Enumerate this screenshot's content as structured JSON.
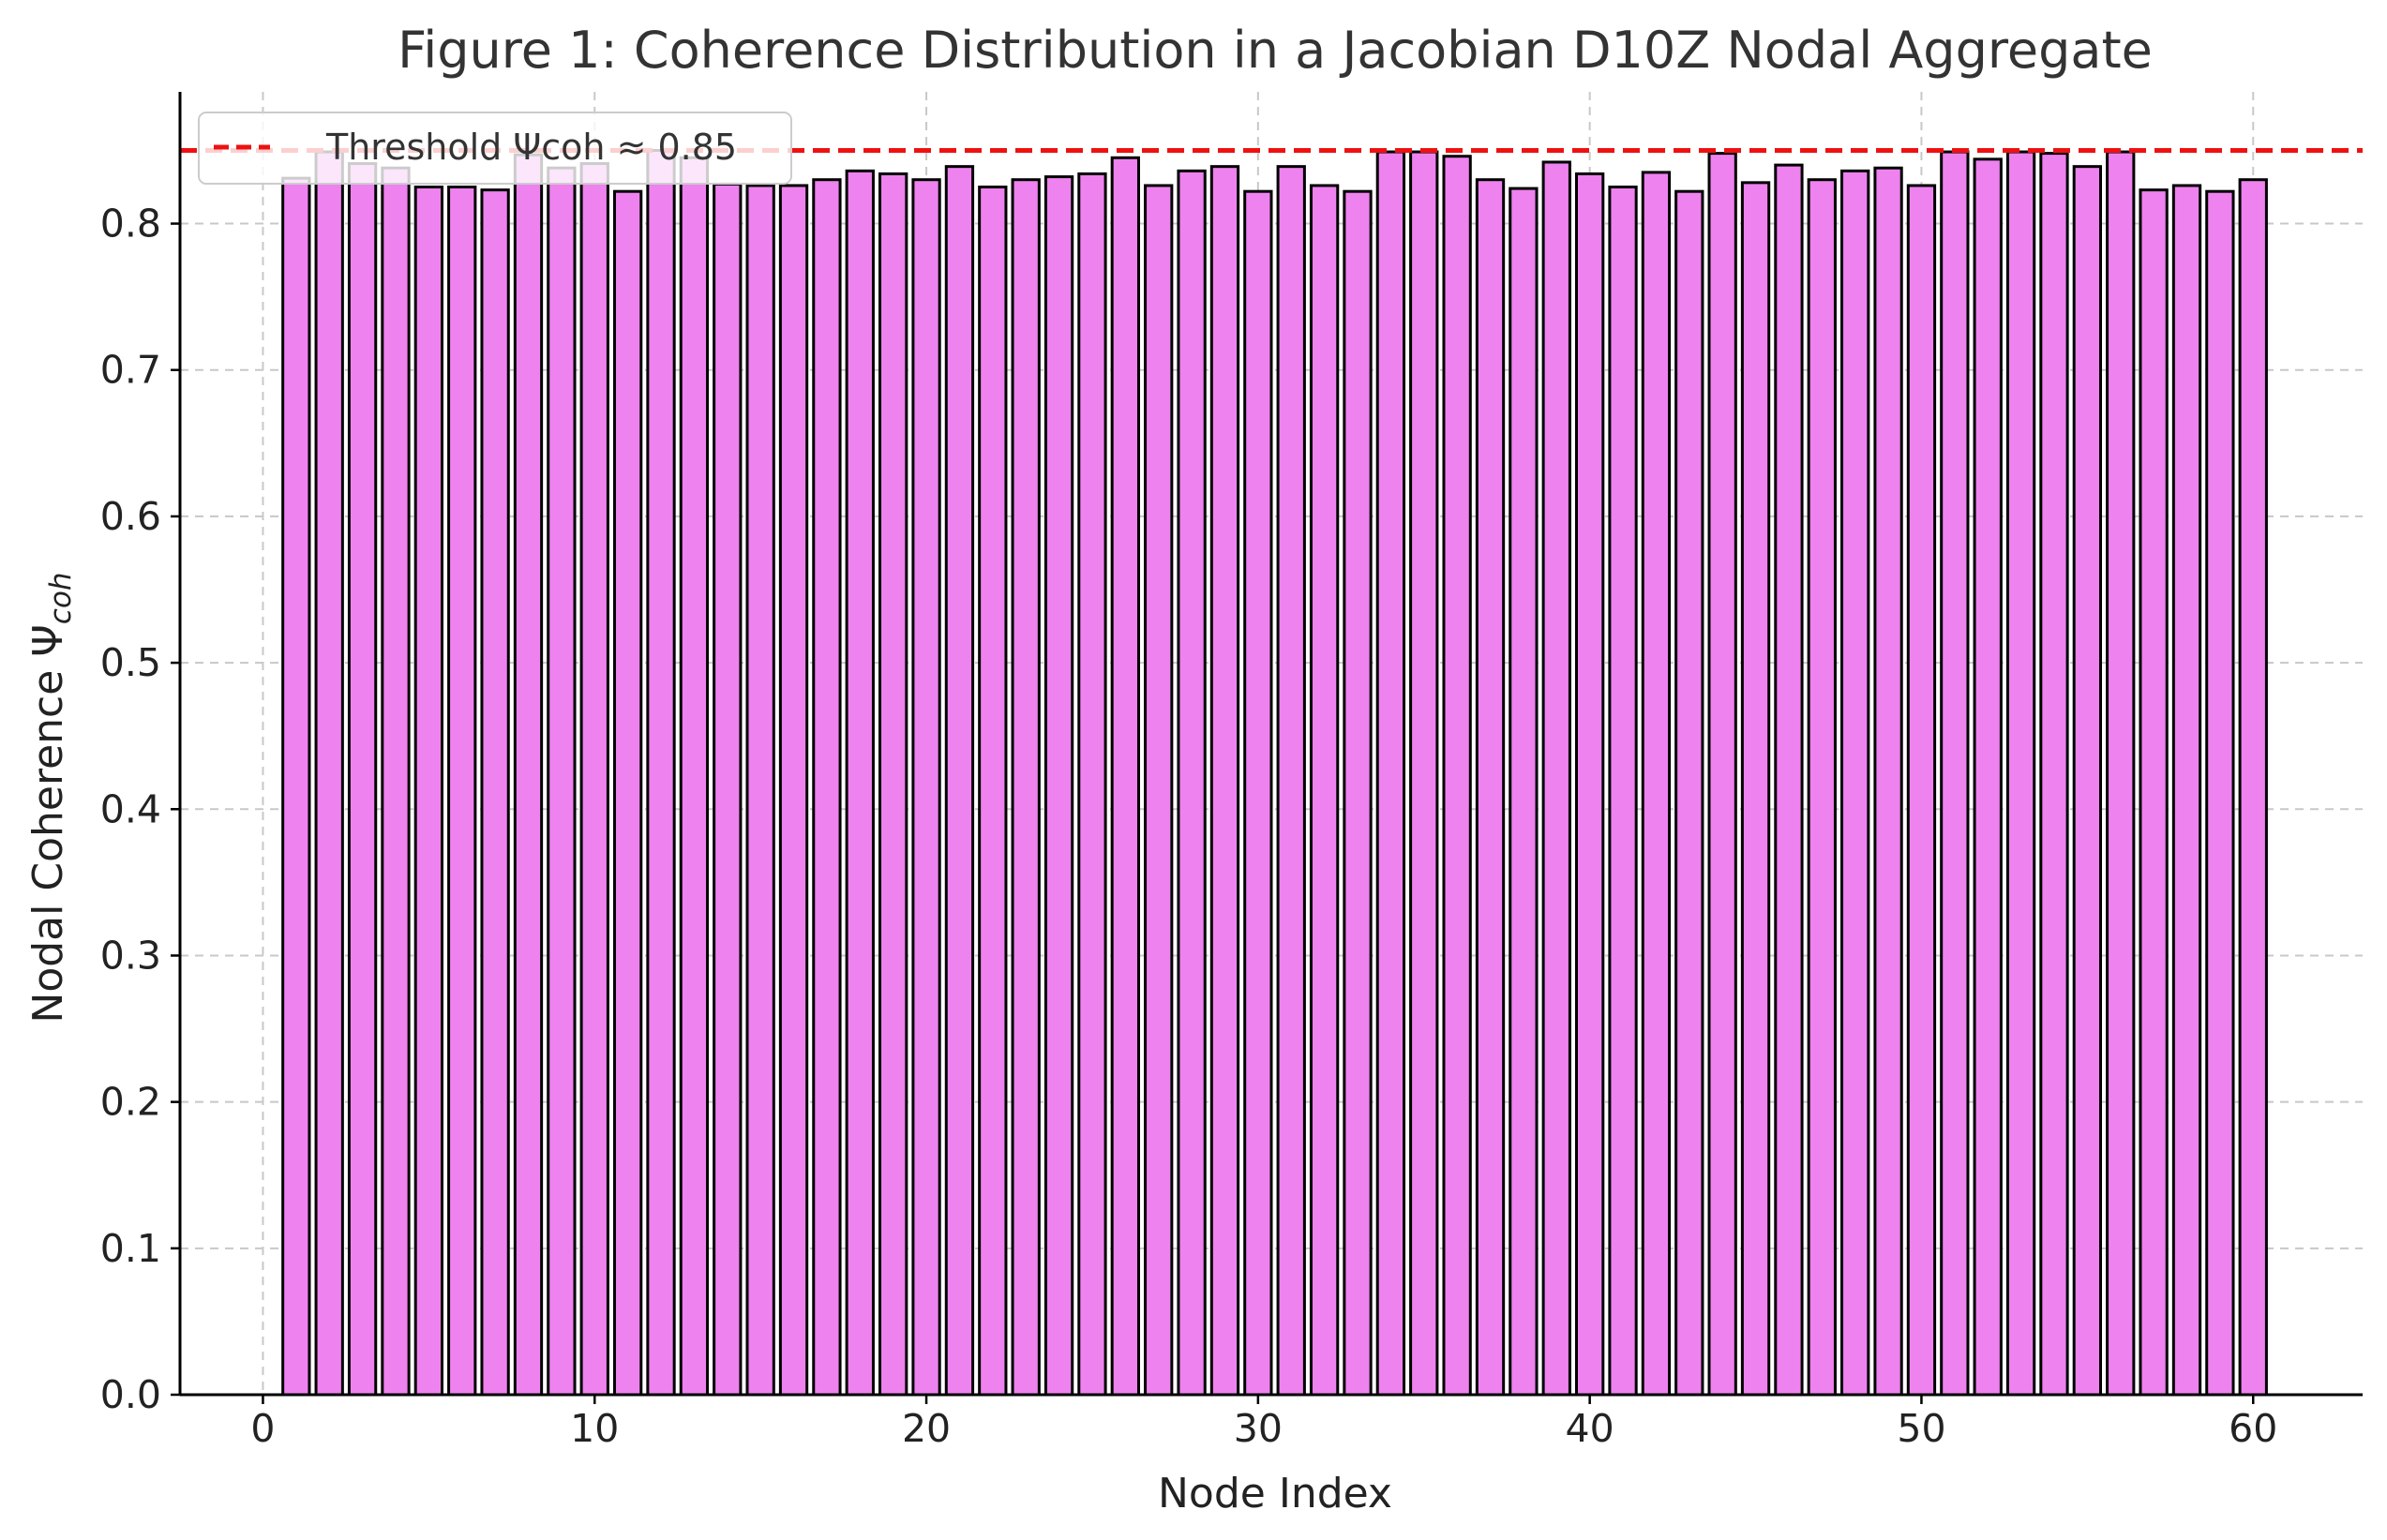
{
  "chart_data": {
    "type": "bar",
    "title": "Figure 1: Coherence Distribution in a Jacobian D10Z Nodal Aggregate",
    "xlabel": "Node Index",
    "ylabel": "Nodal Coherence Ψ",
    "ylabel_subscript": "coh",
    "xlim": [
      -2.5,
      63.3
    ],
    "ylim": [
      0.0,
      0.89
    ],
    "xticks": [
      "0",
      "10",
      "20",
      "30",
      "40",
      "50",
      "60"
    ],
    "yticks": [
      "0.0",
      "0.1",
      "0.2",
      "0.3",
      "0.4",
      "0.5",
      "0.6",
      "0.7",
      "0.8"
    ],
    "grid": true,
    "legend_position": "top-left",
    "x": [
      1,
      2,
      3,
      4,
      5,
      6,
      7,
      8,
      9,
      10,
      11,
      12,
      13,
      14,
      15,
      16,
      17,
      18,
      19,
      20,
      21,
      22,
      23,
      24,
      25,
      26,
      27,
      28,
      29,
      30,
      31,
      32,
      33,
      34,
      35,
      36,
      37,
      38,
      39,
      40,
      41,
      42,
      43,
      44,
      45,
      46,
      47,
      48,
      49,
      50,
      51,
      52,
      53,
      54,
      55,
      56,
      57,
      58,
      59,
      60
    ],
    "values": [
      0.831,
      0.849,
      0.841,
      0.838,
      0.825,
      0.825,
      0.823,
      0.847,
      0.838,
      0.841,
      0.822,
      0.85,
      0.845,
      0.827,
      0.826,
      0.826,
      0.83,
      0.836,
      0.834,
      0.83,
      0.839,
      0.825,
      0.83,
      0.832,
      0.834,
      0.845,
      0.826,
      0.836,
      0.839,
      0.822,
      0.839,
      0.826,
      0.822,
      0.849,
      0.849,
      0.846,
      0.83,
      0.824,
      0.842,
      0.834,
      0.825,
      0.835,
      0.822,
      0.848,
      0.828,
      0.84,
      0.83,
      0.836,
      0.838,
      0.826,
      0.849,
      0.844,
      0.849,
      0.848,
      0.839,
      0.849,
      0.823,
      0.826,
      0.822,
      0.83
    ],
    "threshold": {
      "value": 0.85,
      "label": "Threshold Ψcoh ≈ 0.85",
      "color": "#ee1111"
    },
    "bar_color": "#ee82ee",
    "edge_color": "#000000"
  }
}
